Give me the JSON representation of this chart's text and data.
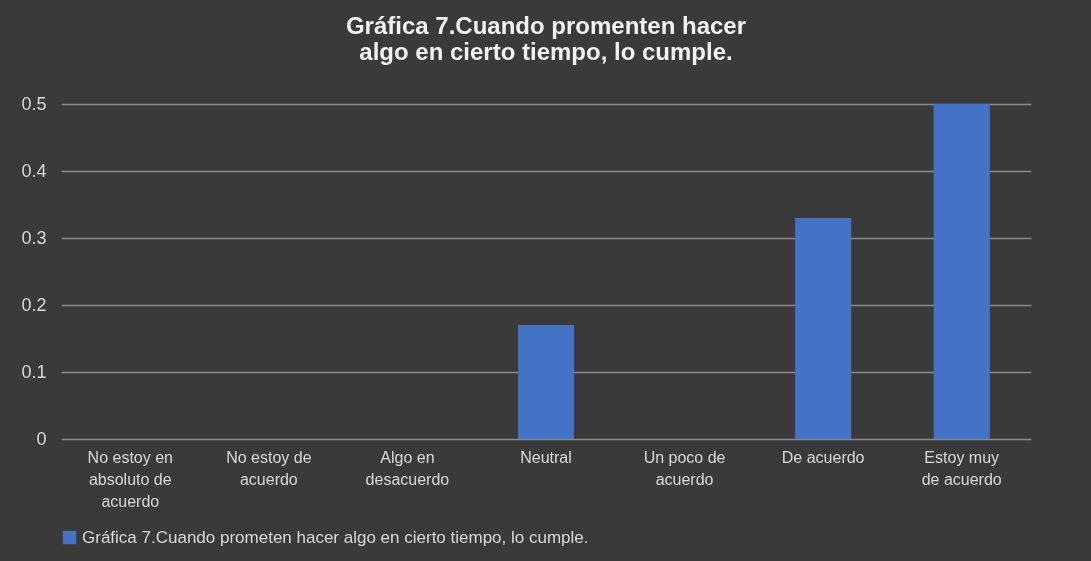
{
  "chart_data": {
    "type": "bar",
    "title": "Gráfica 7.Cuando promenten hacer algo en cierto tiempo, lo cumple.",
    "categories": [
      "No estoy en absoluto de acuerdo",
      "No estoy de acuerdo",
      "Algo en desacuerdo",
      "Neutral",
      "Un poco de acuerdo",
      "De acuerdo",
      "Estoy muy de acuerdo"
    ],
    "series": [
      {
        "name": "Gráfica 7.Cuando  prometen hacer algo en cierto tiempo, lo cumple.",
        "color": "#4472c4",
        "values": [
          0,
          0,
          0,
          0.17,
          0,
          0.33,
          0.5
        ]
      }
    ],
    "ylim": [
      0,
      0.5
    ],
    "yticks": [
      0,
      0.1,
      0.2,
      0.3,
      0.4,
      0.5
    ],
    "grid": "y",
    "legend": "bottom"
  }
}
